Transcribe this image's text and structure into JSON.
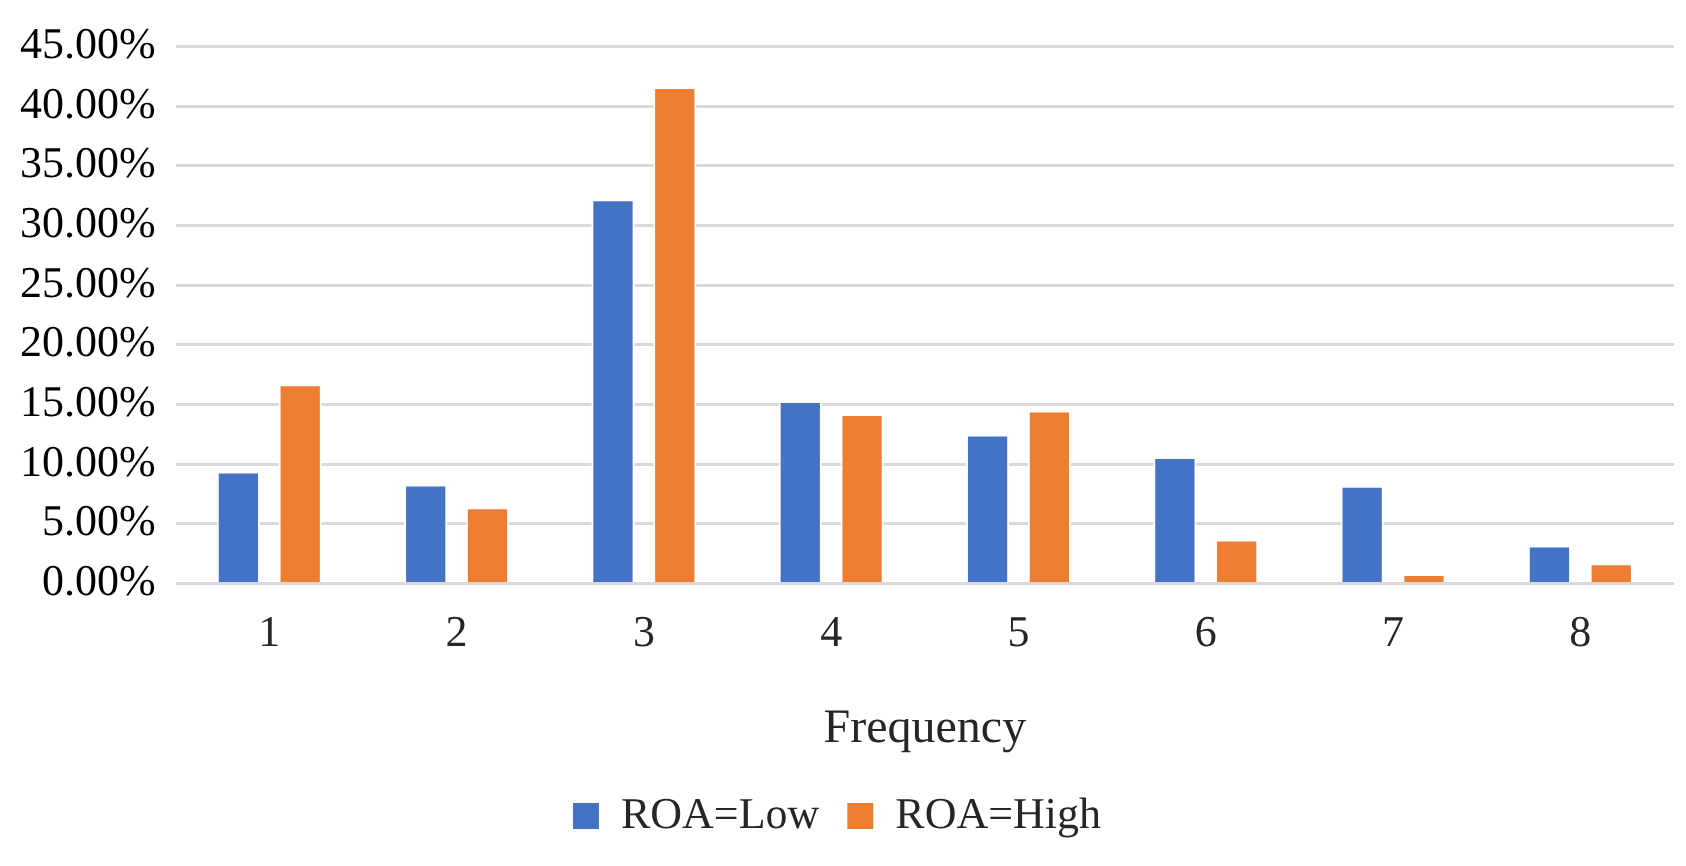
{
  "chart_data": {
    "type": "bar",
    "xlabel": "Frequency",
    "categories": [
      "1",
      "2",
      "3",
      "4",
      "5",
      "6",
      "7",
      "8"
    ],
    "series": [
      {
        "name": "ROA=Low",
        "color": "#4472c4",
        "values": [
          9.4,
          8.3,
          32.2,
          15.3,
          12.5,
          10.6,
          8.2,
          3.2
        ]
      },
      {
        "name": "ROA=High",
        "color": "#ed7d31",
        "values": [
          16.7,
          6.4,
          41.6,
          14.2,
          14.5,
          3.7,
          0.8,
          1.7
        ]
      }
    ],
    "ylim": [
      0,
      45
    ],
    "yticks": [
      {
        "value": 0,
        "label": "0.00%"
      },
      {
        "value": 5,
        "label": "5.00%"
      },
      {
        "value": 10,
        "label": "10.00%"
      },
      {
        "value": 15,
        "label": "15.00%"
      },
      {
        "value": 20,
        "label": "20.00%"
      },
      {
        "value": 25,
        "label": "25.00%"
      },
      {
        "value": 30,
        "label": "30.00%"
      },
      {
        "value": 35,
        "label": "35.00%"
      },
      {
        "value": 40,
        "label": "40.00%"
      },
      {
        "value": 45,
        "label": "45.00%"
      }
    ],
    "grid": "y",
    "legend": "bottom"
  }
}
